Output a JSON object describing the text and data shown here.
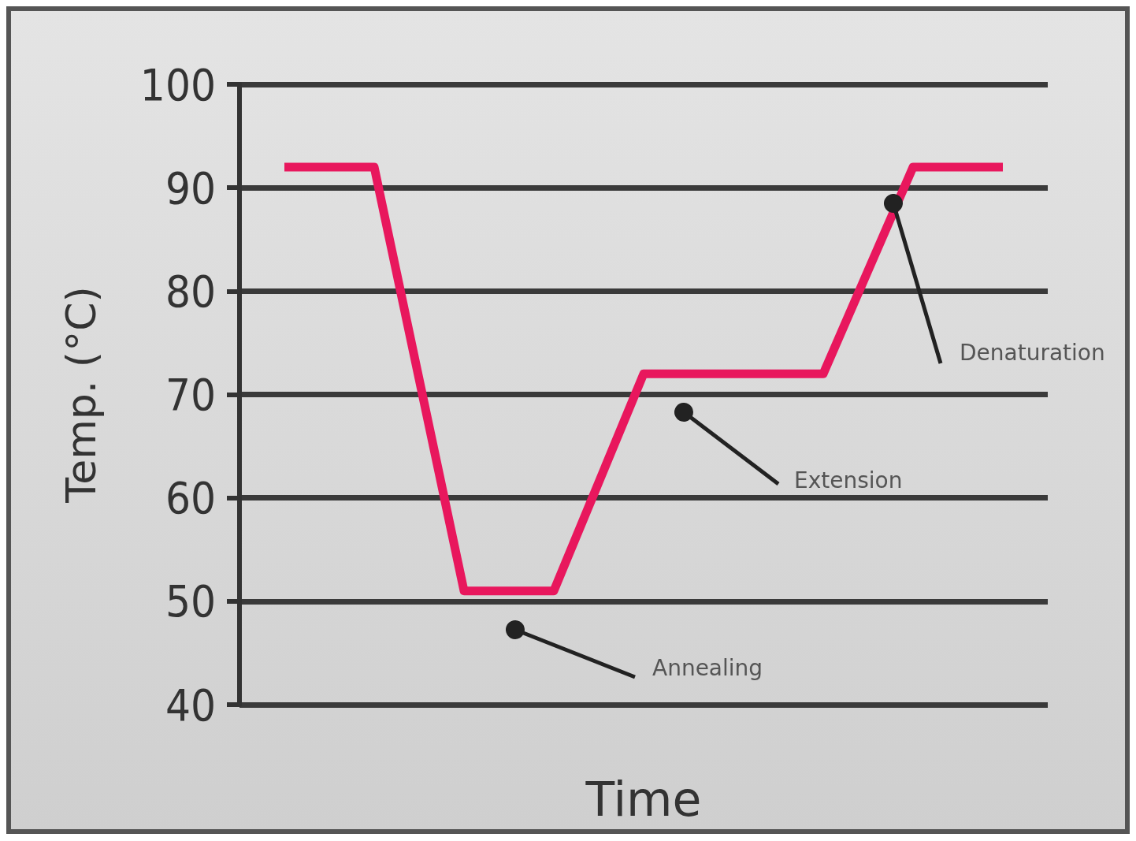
{
  "chart_data": {
    "type": "line",
    "xlabel": "Time",
    "ylabel": "Temp. (°C)",
    "categories": [
      null,
      null,
      null,
      null,
      null,
      null,
      null,
      null,
      null
    ],
    "series": [
      {
        "color": "#e8175d",
        "values": [
          92,
          92,
          51,
          51,
          72,
          72,
          72,
          92,
          92
        ]
      }
    ],
    "ylim": [
      40,
      100
    ],
    "yticks": [
      40,
      50,
      60,
      70,
      80,
      90,
      100
    ],
    "grid": "y",
    "marker": "none",
    "line_style": "solid",
    "tick_labels": "y",
    "annotations": [
      "Denaturation",
      "Extension",
      "Annealing"
    ]
  }
}
